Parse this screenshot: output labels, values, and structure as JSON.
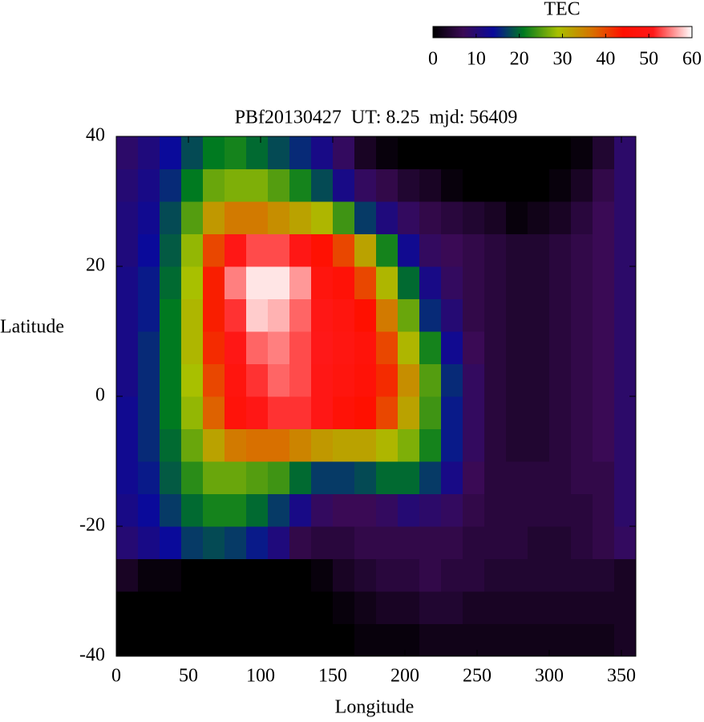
{
  "chart_data": {
    "type": "heatmap",
    "title": "PBf20130427  UT: 8.25  mjd: 56409",
    "xlabel": "Longitude",
    "ylabel": "Latitude",
    "colorbar_label": "TEC",
    "xlim": [
      0,
      360
    ],
    "xticks": [
      0,
      50,
      100,
      150,
      200,
      250,
      300,
      350
    ],
    "ylim": [
      -40,
      40
    ],
    "yticks": [
      -40,
      -20,
      0,
      20,
      40
    ],
    "zlim": [
      0,
      60
    ],
    "colorbar_ticks": [
      0,
      10,
      20,
      30,
      40,
      50,
      60
    ],
    "colorscale": [
      [
        0,
        "#000000"
      ],
      [
        7,
        "#3a0a55"
      ],
      [
        14,
        "#0a0a9a"
      ],
      [
        21,
        "#007a20"
      ],
      [
        29,
        "#a8c000"
      ],
      [
        37,
        "#d87000"
      ],
      [
        44,
        "#ff1000"
      ],
      [
        51,
        "#ff1818"
      ],
      [
        60,
        "#ffffff"
      ]
    ],
    "xbins": [
      0,
      15,
      30,
      45,
      60,
      75,
      90,
      105,
      120,
      135,
      150,
      165,
      180,
      195,
      210,
      225,
      240,
      255,
      270,
      285,
      300,
      315,
      330,
      345,
      360
    ],
    "ybins": [
      -40,
      -35,
      -30,
      -25,
      -20,
      -15,
      -10,
      -5,
      0,
      5,
      10,
      15,
      20,
      25,
      30,
      35,
      40
    ],
    "z": [
      [
        0,
        0,
        0,
        0,
        0,
        0,
        0,
        0,
        0,
        0,
        0,
        1,
        1,
        1,
        2,
        2,
        2,
        2,
        2,
        2,
        2,
        2,
        2,
        3
      ],
      [
        0,
        0,
        0,
        0,
        0,
        0,
        0,
        0,
        0,
        0,
        1,
        2,
        3,
        3,
        4,
        4,
        3,
        3,
        3,
        3,
        3,
        3,
        3,
        3
      ],
      [
        3,
        1,
        1,
        0,
        0,
        0,
        0,
        0,
        0,
        1,
        3,
        4,
        5,
        5,
        6,
        5,
        5,
        4,
        4,
        4,
        4,
        4,
        4,
        3
      ],
      [
        10,
        12,
        14,
        17,
        18,
        17,
        15,
        11,
        6,
        5,
        5,
        6,
        6,
        6,
        6,
        6,
        5,
        5,
        5,
        4,
        4,
        5,
        6,
        8
      ],
      [
        12,
        14,
        17,
        20,
        22,
        22,
        20,
        17,
        12,
        8,
        7,
        7,
        8,
        10,
        9,
        8,
        6,
        5,
        5,
        5,
        5,
        5,
        6,
        9
      ],
      [
        13,
        15,
        19,
        23,
        26,
        26,
        25,
        24,
        20,
        17,
        17,
        18,
        20,
        20,
        17,
        12,
        7,
        5,
        5,
        5,
        5,
        6,
        6,
        9
      ],
      [
        13,
        16,
        20,
        26,
        32,
        36,
        37,
        37,
        35,
        33,
        32,
        32,
        30,
        27,
        22,
        15,
        8,
        5,
        4,
        4,
        5,
        6,
        7,
        9
      ],
      [
        13,
        16,
        21,
        28,
        38,
        47,
        50,
        52,
        52,
        50,
        46,
        44,
        40,
        32,
        24,
        15,
        8,
        5,
        4,
        4,
        5,
        6,
        7,
        9
      ],
      [
        12,
        16,
        21,
        29,
        40,
        48,
        52,
        54,
        53,
        50,
        48,
        46,
        42,
        34,
        25,
        16,
        8,
        5,
        4,
        4,
        5,
        6,
        7,
        9
      ],
      [
        12,
        16,
        21,
        30,
        42,
        50,
        54,
        55,
        53,
        51,
        49,
        47,
        40,
        30,
        22,
        13,
        7,
        5,
        4,
        4,
        5,
        6,
        7,
        9
      ],
      [
        12,
        15,
        21,
        30,
        43,
        52,
        58,
        57,
        54,
        50,
        48,
        44,
        36,
        26,
        16,
        10,
        6,
        5,
        4,
        4,
        5,
        6,
        7,
        9
      ],
      [
        12,
        15,
        20,
        29,
        43,
        55,
        59,
        59,
        56,
        48,
        46,
        40,
        30,
        20,
        12,
        8,
        6,
        5,
        4,
        4,
        5,
        6,
        7,
        9
      ],
      [
        11,
        14,
        19,
        28,
        40,
        50,
        53,
        53,
        50,
        45,
        40,
        32,
        22,
        13,
        8,
        7,
        6,
        5,
        4,
        4,
        5,
        6,
        7,
        9
      ],
      [
        11,
        13,
        18,
        25,
        33,
        36,
        36,
        34,
        32,
        30,
        24,
        17,
        11,
        8,
        6,
        5,
        4,
        3,
        1,
        2,
        3,
        5,
        7,
        9
      ],
      [
        10,
        12,
        16,
        21,
        26,
        27,
        27,
        25,
        22,
        18,
        12,
        8,
        6,
        4,
        3,
        1,
        0,
        0,
        0,
        0,
        1,
        3,
        6,
        9
      ],
      [
        9,
        11,
        14,
        18,
        21,
        22,
        20,
        18,
        16,
        12,
        8,
        3,
        1,
        0,
        0,
        0,
        0,
        0,
        0,
        0,
        0,
        1,
        4,
        9
      ]
    ]
  }
}
